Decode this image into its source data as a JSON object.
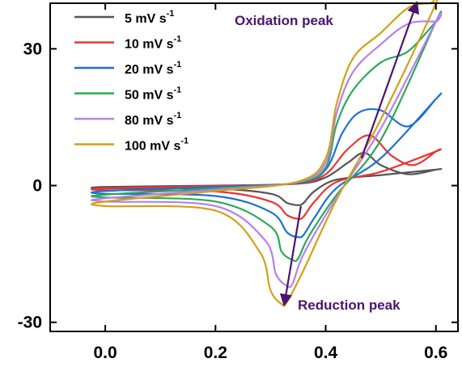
{
  "chart_data": {
    "type": "line",
    "title": "",
    "xlabel": "",
    "ylabel": "",
    "xlim": [
      -0.1,
      0.64
    ],
    "ylim": [
      -32,
      40
    ],
    "xticks": [
      0.0,
      0.2,
      0.4,
      0.6
    ],
    "xtick_labels": [
      "0.0",
      "0.2",
      "0.4",
      "0.6"
    ],
    "yticks": [
      -30,
      0,
      30
    ],
    "ytick_labels": [
      "-30",
      "0",
      "30"
    ],
    "grid": false,
    "legend_position": "top-left",
    "series": [
      {
        "name": "5 mV s-1",
        "legend_base": "5 mV s",
        "legend_sup": "-1",
        "color": "#555555",
        "x": [
          0.0,
          0.2,
          0.35,
          0.4,
          0.44,
          0.47,
          0.5,
          0.55,
          0.6,
          0.6,
          0.5,
          0.42,
          0.38,
          0.36,
          0.35,
          0.33,
          0.3,
          0.2,
          0.0
        ],
        "y": [
          -0.3,
          0.0,
          0.4,
          1.8,
          5.0,
          7.2,
          4.5,
          2.5,
          3.5,
          3.5,
          2.3,
          1.3,
          -1.2,
          -3.8,
          -4.3,
          -3.8,
          -1.8,
          -0.7,
          -0.6
        ]
      },
      {
        "name": "10 mV s-1",
        "legend_base": "10 mV s",
        "legend_sup": "-1",
        "color": "#ee3333",
        "x": [
          0.0,
          0.2,
          0.35,
          0.4,
          0.44,
          0.48,
          0.52,
          0.56,
          0.6,
          0.6,
          0.5,
          0.42,
          0.38,
          0.36,
          0.35,
          0.33,
          0.3,
          0.2,
          0.0
        ],
        "y": [
          -0.6,
          -0.1,
          0.5,
          2.5,
          8.0,
          11.0,
          6.5,
          4.5,
          7.5,
          7.5,
          3.0,
          0.8,
          -3.5,
          -6.8,
          -7.3,
          -6.5,
          -3.5,
          -1.3,
          -1.0
        ]
      },
      {
        "name": "20 mV s-1",
        "legend_base": "20 mV s",
        "legend_sup": "-1",
        "color": "#1f6fd6",
        "x": [
          0.0,
          0.2,
          0.35,
          0.4,
          0.43,
          0.46,
          0.5,
          0.55,
          0.6,
          0.6,
          0.5,
          0.42,
          0.38,
          0.36,
          0.35,
          0.33,
          0.3,
          0.2,
          0.0
        ],
        "y": [
          -1.2,
          -0.3,
          0.6,
          3.5,
          11.5,
          16.0,
          16.5,
          13.0,
          19.0,
          19.0,
          6.0,
          -0.5,
          -7.0,
          -10.8,
          -11.3,
          -10.3,
          -5.8,
          -2.3,
          -1.8
        ]
      },
      {
        "name": "50 mV s-1",
        "legend_base": "50 mV s",
        "legend_sup": "-1",
        "color": "#2aaa55",
        "x": [
          0.0,
          0.2,
          0.35,
          0.4,
          0.42,
          0.45,
          0.5,
          0.55,
          0.6,
          0.6,
          0.5,
          0.42,
          0.37,
          0.35,
          0.34,
          0.32,
          0.3,
          0.2,
          0.0
        ],
        "y": [
          -2.0,
          -0.6,
          0.7,
          4.0,
          13.5,
          21.0,
          27.0,
          29.5,
          36.0,
          36.0,
          10.0,
          -2.0,
          -11.0,
          -16.0,
          -16.3,
          -14.5,
          -9.0,
          -3.5,
          -2.6
        ]
      },
      {
        "name": "80 mV s-1",
        "legend_base": "80 mV s",
        "legend_sup": "-1",
        "color": "#b77ff0",
        "x": [
          0.0,
          0.2,
          0.35,
          0.4,
          0.42,
          0.45,
          0.5,
          0.55,
          0.6,
          0.6,
          0.5,
          0.42,
          0.36,
          0.34,
          0.33,
          0.31,
          0.29,
          0.2,
          0.0
        ],
        "y": [
          -2.8,
          -0.9,
          0.8,
          5.0,
          16.0,
          25.0,
          31.0,
          35.5,
          36.0,
          36.0,
          12.5,
          -2.5,
          -15.0,
          -21.5,
          -22.0,
          -19.5,
          -12.0,
          -4.5,
          -3.5
        ]
      },
      {
        "name": "100 mV s-1",
        "legend_base": "100 mV s",
        "legend_sup": "-1",
        "color": "#d4a017",
        "x": [
          0.0,
          0.2,
          0.35,
          0.4,
          0.42,
          0.45,
          0.5,
          0.55,
          0.59,
          0.6,
          0.5,
          0.42,
          0.36,
          0.33,
          0.32,
          0.3,
          0.28,
          0.2,
          0.0
        ],
        "y": [
          -3.5,
          -1.2,
          0.9,
          6.0,
          18.0,
          28.0,
          33.5,
          39.0,
          40.0,
          40.0,
          14.5,
          -3.0,
          -18.5,
          -25.5,
          -26.0,
          -23.0,
          -14.5,
          -5.5,
          -4.5
        ]
      }
    ],
    "annotations": [
      {
        "text": "Oxidation peak",
        "color": "#4b1470",
        "arrow": {
          "from": [
            0.465,
            6.0
          ],
          "to": [
            0.565,
            40.0
          ]
        }
      },
      {
        "text": "Reduction peak",
        "color": "#4b1470",
        "arrow": {
          "from": [
            0.355,
            -4.5
          ],
          "to": [
            0.325,
            -26.0
          ]
        }
      }
    ]
  }
}
